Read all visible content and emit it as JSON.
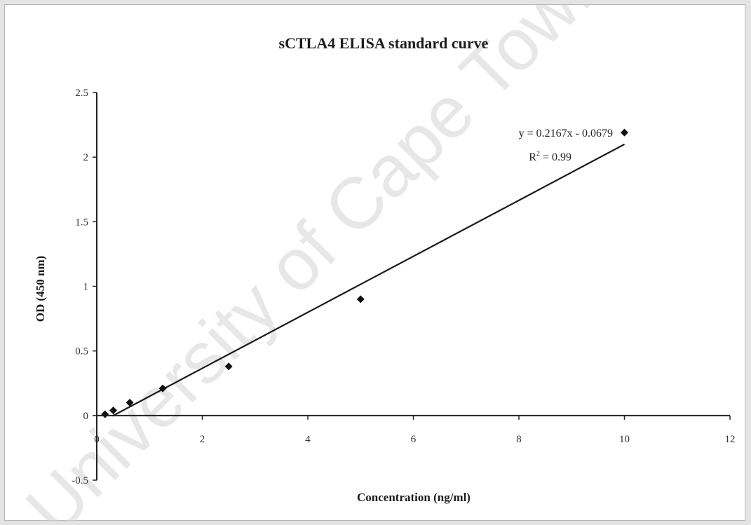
{
  "chart_data": {
    "type": "scatter",
    "title": "sCTLA4 ELISA standard curve",
    "xlabel": "Concentration (ng/ml)",
    "ylabel": "OD (450 nm)",
    "xlim": [
      0,
      12
    ],
    "ylim": [
      -0.5,
      2.5
    ],
    "x_ticks": [
      0,
      2,
      4,
      6,
      8,
      10,
      12
    ],
    "y_ticks": [
      -0.5,
      0,
      0.5,
      1,
      1.5,
      2,
      2.5
    ],
    "x_tick_labels": [
      "0",
      "2",
      "4",
      "6",
      "8",
      "10",
      "12"
    ],
    "y_tick_labels": [
      "-0.5",
      "0",
      "0.5",
      "1",
      "1.5",
      "2",
      "2.5"
    ],
    "grid": false,
    "marker_color": "#111111",
    "series": [
      {
        "x": [
          0.156,
          0.3125,
          0.625,
          1.25,
          2.5,
          5,
          10
        ],
        "y": [
          0.01,
          0.04,
          0.1,
          0.21,
          0.38,
          0.9,
          2.19
        ]
      }
    ],
    "trendline": {
      "type": "linear",
      "slope": 0.2167,
      "intercept": -0.0679,
      "x_range": [
        0.3,
        10
      ],
      "equation_label": "y = 0.2167x - 0.0679",
      "r2_label": "R",
      "r2_superscript": "2",
      "r2_value": " = 0.99"
    }
  },
  "watermark": {
    "text": "University of Cape Town",
    "color": "#d4d4d4"
  }
}
